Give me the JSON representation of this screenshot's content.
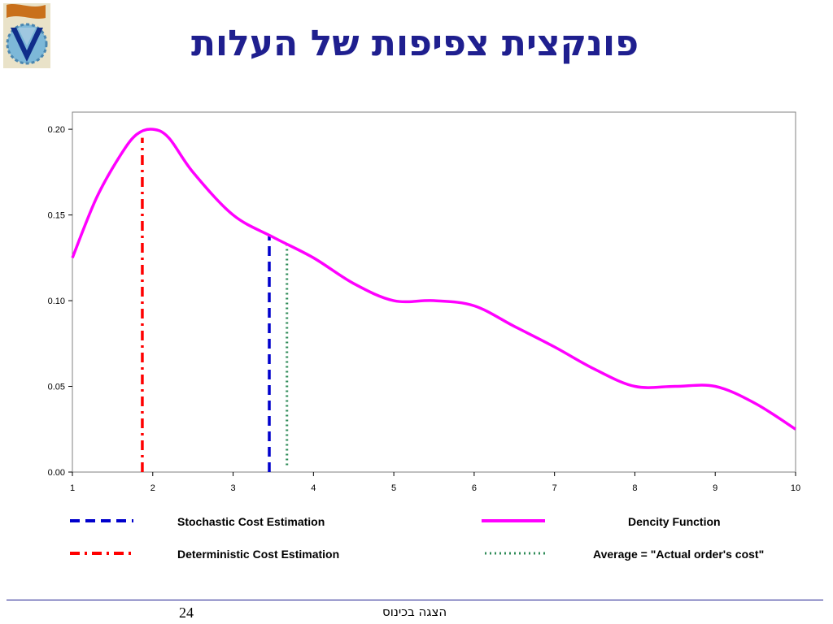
{
  "slide": {
    "title": "פונקצית צפיפות של העלות",
    "page_number": "24",
    "footer_text": "הצגה בכינוס"
  },
  "colors": {
    "title": "#1f1f8f",
    "density": "#ff00ff",
    "stochastic": "#0000cc",
    "deterministic": "#ff0000",
    "average": "#2e8b57"
  },
  "chart_data": {
    "type": "line",
    "xlim": [
      1,
      10
    ],
    "ylim": [
      0,
      0.21
    ],
    "x_ticks": [
      "1",
      "2",
      "3",
      "4",
      "5",
      "6",
      "7",
      "8",
      "9",
      "10"
    ],
    "y_ticks": [
      "0.00",
      "0.05",
      "0.10",
      "0.15",
      "0.20"
    ],
    "grid": false,
    "legend_position": "bottom",
    "series": [
      {
        "name": "Dencity Function",
        "style": "solid",
        "color": "#ff00ff",
        "x": [
          1,
          1.3,
          1.6,
          1.8,
          2.0,
          2.2,
          2.5,
          3.0,
          3.5,
          4.0,
          4.5,
          5.0,
          5.5,
          6.0,
          6.5,
          7.0,
          7.5,
          8.0,
          8.5,
          9.0,
          9.5,
          10.0
        ],
        "y": [
          0.125,
          0.16,
          0.185,
          0.197,
          0.2,
          0.195,
          0.175,
          0.15,
          0.137,
          0.125,
          0.11,
          0.1,
          0.1,
          0.097,
          0.085,
          0.073,
          0.06,
          0.05,
          0.05,
          0.05,
          0.04,
          0.025
        ]
      },
      {
        "name": "Stochastic Cost Estimation",
        "style": "dashed",
        "color": "#0000cc",
        "x": [
          3.45,
          3.45
        ],
        "y": [
          0,
          0.138
        ]
      },
      {
        "name": "Deterministic Cost Estimation",
        "style": "dash-dot",
        "color": "#ff0000",
        "x": [
          1.87,
          1.87
        ],
        "y": [
          0,
          0.195
        ]
      },
      {
        "name": "Average = \"Actual order's cost\"",
        "style": "dotted",
        "color": "#2e8b57",
        "x": [
          3.67,
          3.67
        ],
        "y": [
          0.004,
          0.133
        ]
      }
    ]
  }
}
